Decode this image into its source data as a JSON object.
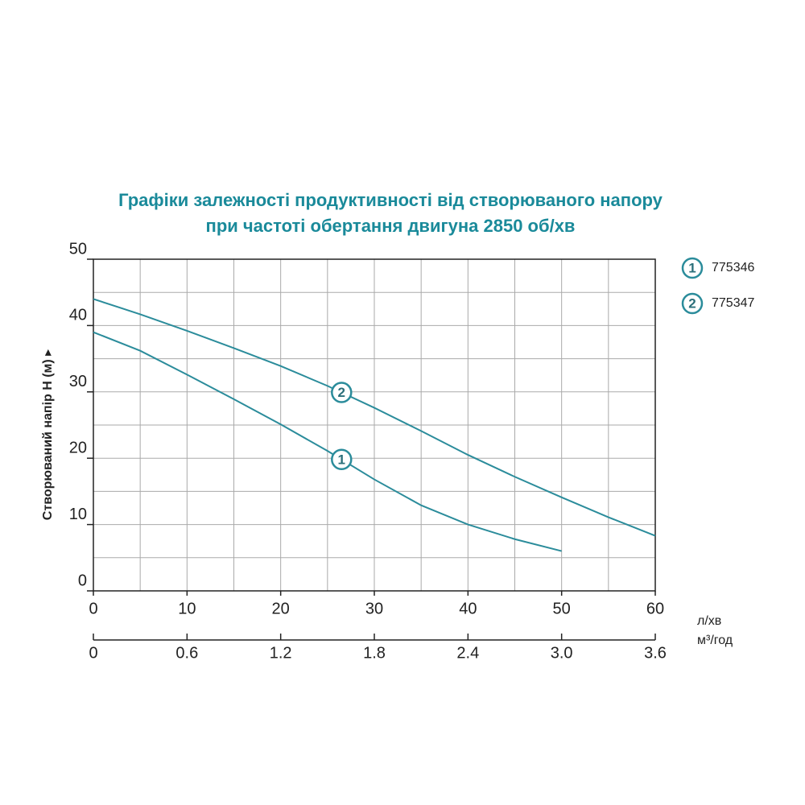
{
  "chart_data": {
    "type": "line",
    "title": [
      "Графіки залежності продуктивності від створюваного напору",
      "при частоті обертання двигуна 2850 об/хв"
    ],
    "y_label": "Створюваний напір H (м) ▸",
    "x_unit": "л/хв",
    "x2_unit": "м³/год",
    "xlim": [
      0,
      60
    ],
    "xticks": [
      0,
      10,
      20,
      30,
      40,
      50,
      60
    ],
    "x2lim": [
      0,
      3.6
    ],
    "x2ticks": [
      0,
      0.6,
      1.2,
      1.8,
      2.4,
      {
        "value": 3,
        "label": "3.0"
      },
      3.6
    ],
    "ylim": [
      0,
      50
    ],
    "yticks": [
      0,
      10,
      20,
      30,
      40,
      50
    ],
    "xgrid": [
      5,
      10,
      15,
      20,
      25,
      30,
      35,
      40,
      45,
      50,
      55
    ],
    "ygrid": [
      5,
      10,
      15,
      20,
      25,
      30,
      35,
      40,
      45
    ],
    "grid": true,
    "series": [
      {
        "name": "775346",
        "label": "1",
        "color": "#2b8c9b",
        "x": [
          0,
          5,
          10,
          15,
          20,
          25,
          30,
          35,
          40,
          45,
          50
        ],
        "values": [
          39,
          36.2,
          32.6,
          28.9,
          25.1,
          21.1,
          16.8,
          12.9,
          10,
          7.8,
          6
        ]
      },
      {
        "name": "775347",
        "label": "2",
        "color": "#2b8c9b",
        "x": [
          0,
          5,
          10,
          15,
          20,
          25,
          30,
          35,
          40,
          45,
          50,
          55,
          60
        ],
        "values": [
          44,
          41.7,
          39.2,
          36.6,
          33.9,
          30.9,
          27.6,
          24.1,
          20.5,
          17.2,
          14.1,
          11.1,
          8.3
        ]
      }
    ]
  }
}
